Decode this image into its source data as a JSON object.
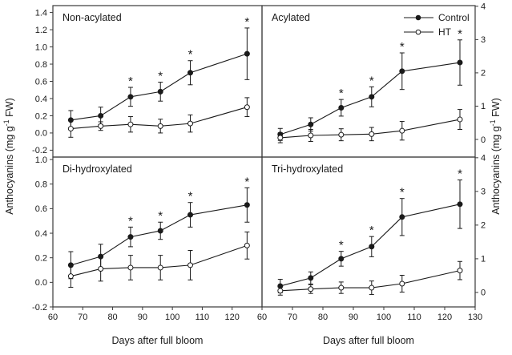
{
  "chart_data": {
    "type": "line",
    "x": [
      66,
      76,
      86,
      96,
      106,
      125
    ],
    "xlim": [
      60,
      130
    ],
    "xticks": [
      60,
      70,
      80,
      90,
      100,
      110,
      120,
      130
    ],
    "xlabel": "Days after full bloom",
    "ylabel": {
      "prefix": "Anthocyanins (mg g",
      "superscript": "-1",
      "suffix": " FW)"
    },
    "legend": {
      "position": "top-right-panel",
      "entries": [
        {
          "label": "Control",
          "marker": "filled-circle"
        },
        {
          "label": "HT",
          "marker": "open-circle"
        }
      ]
    },
    "colors": {
      "foreground": "#1a1a1a",
      "frame": "#3a3a3a",
      "background": "#ffffff"
    },
    "panels": [
      {
        "title": "Non-acylated",
        "axis_side": "left",
        "ylim": [
          -0.28,
          1.48
        ],
        "yticks": [
          1.4,
          1.2,
          1.0,
          0.8,
          0.6,
          0.4,
          0.2,
          0.0,
          -0.2
        ],
        "ytick_labels": [
          "1.4",
          "1.2",
          "1.0",
          "0.8",
          "0.6",
          "0.4",
          "0.2",
          "0.0",
          "-0.2"
        ],
        "xtick_labels": null,
        "series": [
          {
            "name": "Control",
            "marker": "filled-circle",
            "values": [
              0.15,
              0.2,
              0.42,
              0.48,
              0.7,
              0.92
            ],
            "errors": [
              0.11,
              0.1,
              0.11,
              0.11,
              0.14,
              0.3
            ]
          },
          {
            "name": "HT",
            "marker": "open-circle",
            "values": [
              0.05,
              0.08,
              0.1,
              0.08,
              0.11,
              0.3
            ],
            "errors": [
              0.1,
              0.05,
              0.09,
              0.08,
              0.1,
              0.11
            ]
          }
        ],
        "significance_days": [
          86,
          96,
          106,
          125
        ],
        "significance_symbol": "*"
      },
      {
        "title": "Acylated",
        "axis_side": "right",
        "ylim": [
          -0.53,
          4.02
        ],
        "yticks": [
          4,
          3,
          2,
          1,
          0
        ],
        "ytick_labels": [
          "4",
          "3",
          "2",
          "1",
          "0"
        ],
        "xtick_labels": null,
        "series": [
          {
            "name": "Control",
            "marker": "filled-circle",
            "values": [
              0.15,
              0.45,
              0.95,
              1.28,
              2.05,
              2.31
            ],
            "errors": [
              0.18,
              0.2,
              0.25,
              0.3,
              0.55,
              0.68
            ]
          },
          {
            "name": "HT",
            "marker": "open-circle",
            "values": [
              0.05,
              0.12,
              0.14,
              0.16,
              0.26,
              0.6
            ],
            "errors": [
              0.15,
              0.18,
              0.18,
              0.2,
              0.28,
              0.3
            ]
          }
        ],
        "significance_days": [
          86,
          96,
          106,
          125
        ],
        "significance_symbol": "*"
      },
      {
        "title": "Di-hydroxylated",
        "axis_side": "left",
        "ylim": [
          -0.2,
          1.02
        ],
        "yticks": [
          1.0,
          0.8,
          0.6,
          0.4,
          0.2,
          0.0,
          -0.2
        ],
        "ytick_labels": [
          "1.0",
          "0.8",
          "0.6",
          "0.4",
          "0.2",
          "0.0",
          "-0.2"
        ],
        "xtick_labels": [
          "60",
          "70",
          "80",
          "90",
          "100",
          "110",
          "120",
          null
        ],
        "series": [
          {
            "name": "Control",
            "marker": "filled-circle",
            "values": [
              0.14,
              0.21,
              0.37,
              0.42,
              0.55,
              0.63
            ],
            "errors": [
              0.11,
              0.1,
              0.08,
              0.07,
              0.1,
              0.14
            ]
          },
          {
            "name": "HT",
            "marker": "open-circle",
            "values": [
              0.05,
              0.11,
              0.12,
              0.12,
              0.14,
              0.3
            ],
            "errors": [
              0.09,
              0.1,
              0.1,
              0.1,
              0.12,
              0.11
            ]
          }
        ],
        "significance_days": [
          86,
          96,
          106,
          125
        ],
        "significance_symbol": "*"
      },
      {
        "title": "Tri-hydroxylated",
        "axis_side": "right",
        "ylim": [
          -0.43,
          4.02
        ],
        "yticks": [
          4,
          3,
          2,
          1,
          0
        ],
        "ytick_labels": [
          "4",
          "3",
          "2",
          "1",
          "0"
        ],
        "xtick_labels": [
          "60",
          "70",
          "80",
          "90",
          "100",
          "110",
          "120",
          "130"
        ],
        "series": [
          {
            "name": "Control",
            "marker": "filled-circle",
            "values": [
              0.19,
              0.43,
              1.0,
              1.36,
              2.24,
              2.62
            ],
            "errors": [
              0.2,
              0.18,
              0.22,
              0.3,
              0.55,
              0.72
            ]
          },
          {
            "name": "HT",
            "marker": "open-circle",
            "values": [
              0.05,
              0.1,
              0.14,
              0.14,
              0.26,
              0.65
            ],
            "errors": [
              0.13,
              0.13,
              0.17,
              0.2,
              0.25,
              0.27
            ]
          }
        ],
        "significance_days": [
          86,
          96,
          106,
          125
        ],
        "significance_symbol": "*"
      }
    ]
  }
}
